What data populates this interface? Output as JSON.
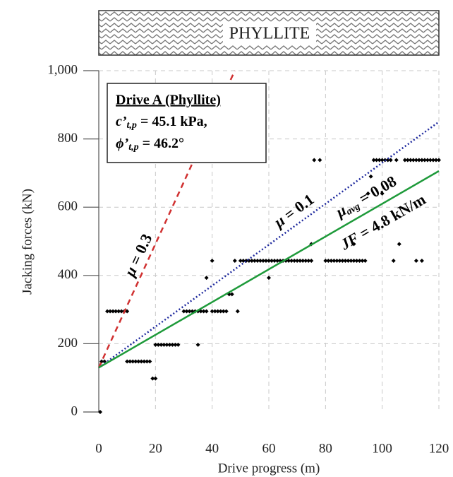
{
  "chart_data": {
    "type": "scatter",
    "header": "PHYLLITE",
    "x_label": "Drive progress (m)",
    "y_label": "Jacking forces (kN)",
    "xlim": [
      0,
      120
    ],
    "ylim": [
      0,
      1000
    ],
    "xticks": [
      0,
      20,
      40,
      60,
      80,
      100,
      120
    ],
    "yticks": [
      0,
      200,
      400,
      600,
      800,
      {
        "value": 1000,
        "label": "1,000"
      }
    ],
    "grid": true,
    "info_box": {
      "title": "Drive A (Phyllite)",
      "lines": [
        {
          "symbol": "c’",
          "subscript": "t,p",
          "text": " = 45.1 kPa,"
        },
        {
          "symbol": "ϕ’",
          "subscript": "t,p",
          "text": " = 46.2°"
        }
      ]
    },
    "series": [
      {
        "type": "scatter",
        "color": "#000000",
        "x": [
          0.5,
          1,
          2,
          3,
          4,
          5,
          6,
          7,
          8,
          9,
          10,
          10,
          11,
          12,
          13,
          14,
          15,
          16,
          17,
          18,
          19,
          20,
          20,
          21,
          22,
          23,
          24,
          25,
          26,
          27,
          28,
          30,
          31,
          32,
          33,
          34,
          35,
          36,
          37,
          38,
          35,
          38,
          40,
          40,
          41,
          42,
          43,
          44,
          45,
          46,
          47,
          48,
          49,
          50,
          51,
          52,
          53,
          54,
          55,
          56,
          57,
          58,
          59,
          60,
          61,
          62,
          63,
          64,
          65,
          66,
          67,
          68,
          69,
          70,
          71,
          72,
          73,
          74,
          75,
          60,
          75,
          76,
          78,
          80,
          81,
          82,
          83,
          84,
          85,
          86,
          87,
          88,
          89,
          90,
          91,
          92,
          93,
          94,
          90,
          95,
          96,
          97,
          98,
          99,
          100,
          101,
          102,
          103,
          105,
          100,
          104,
          106,
          108,
          109,
          110,
          111,
          112,
          113,
          114,
          115,
          116,
          117,
          118,
          112,
          114,
          119,
          120
        ],
        "values": [
          0,
          148,
          148,
          295,
          295,
          295,
          295,
          295,
          295,
          295,
          295,
          148,
          148,
          148,
          148,
          148,
          148,
          148,
          148,
          148,
          98,
          98,
          197,
          197,
          197,
          197,
          197,
          197,
          197,
          197,
          197,
          295,
          295,
          295,
          295,
          295,
          295,
          295,
          295,
          295,
          197,
          393,
          443,
          295,
          295,
          295,
          295,
          295,
          295,
          345,
          345,
          443,
          295,
          443,
          443,
          443,
          443,
          443,
          443,
          443,
          443,
          443,
          443,
          443,
          443,
          443,
          443,
          443,
          443,
          443,
          443,
          443,
          443,
          443,
          443,
          443,
          443,
          443,
          443,
          393,
          492,
          738,
          738,
          443,
          443,
          443,
          443,
          443,
          443,
          443,
          443,
          443,
          443,
          443,
          443,
          443,
          443,
          443,
          492,
          640,
          690,
          738,
          738,
          738,
          738,
          738,
          738,
          738,
          738,
          640,
          443,
          492,
          738,
          738,
          738,
          738,
          738,
          738,
          738,
          738,
          738,
          738,
          738,
          443,
          443,
          738,
          738
        ]
      },
      {
        "type": "line",
        "color": "#d03030",
        "dash": "8 6",
        "x": [
          0,
          48
        ],
        "values": [
          130,
          1000
        ]
      },
      {
        "type": "line",
        "color": "#1f2a9e",
        "dash": "2 3",
        "x": [
          0,
          120
        ],
        "values": [
          130,
          850
        ]
      },
      {
        "type": "line",
        "color": "#1e9a3a",
        "dash": "",
        "x": [
          0,
          120
        ],
        "values": [
          130,
          706
        ]
      }
    ],
    "line_labels": [
      {
        "symbol": "μ",
        "subscript": "",
        "text": " = 0.3",
        "color": "#c00000"
      },
      {
        "symbol": "μ",
        "subscript": "",
        "text": " = 0.1",
        "color": "#2f3fa0"
      },
      {
        "symbol": "μ",
        "subscript": "avg",
        "text": " = 0.08",
        "color": "#538135"
      },
      {
        "symbol": "JF",
        "subscript": "",
        "text": " = 4.8 kN/m",
        "color": "#538135"
      }
    ]
  }
}
